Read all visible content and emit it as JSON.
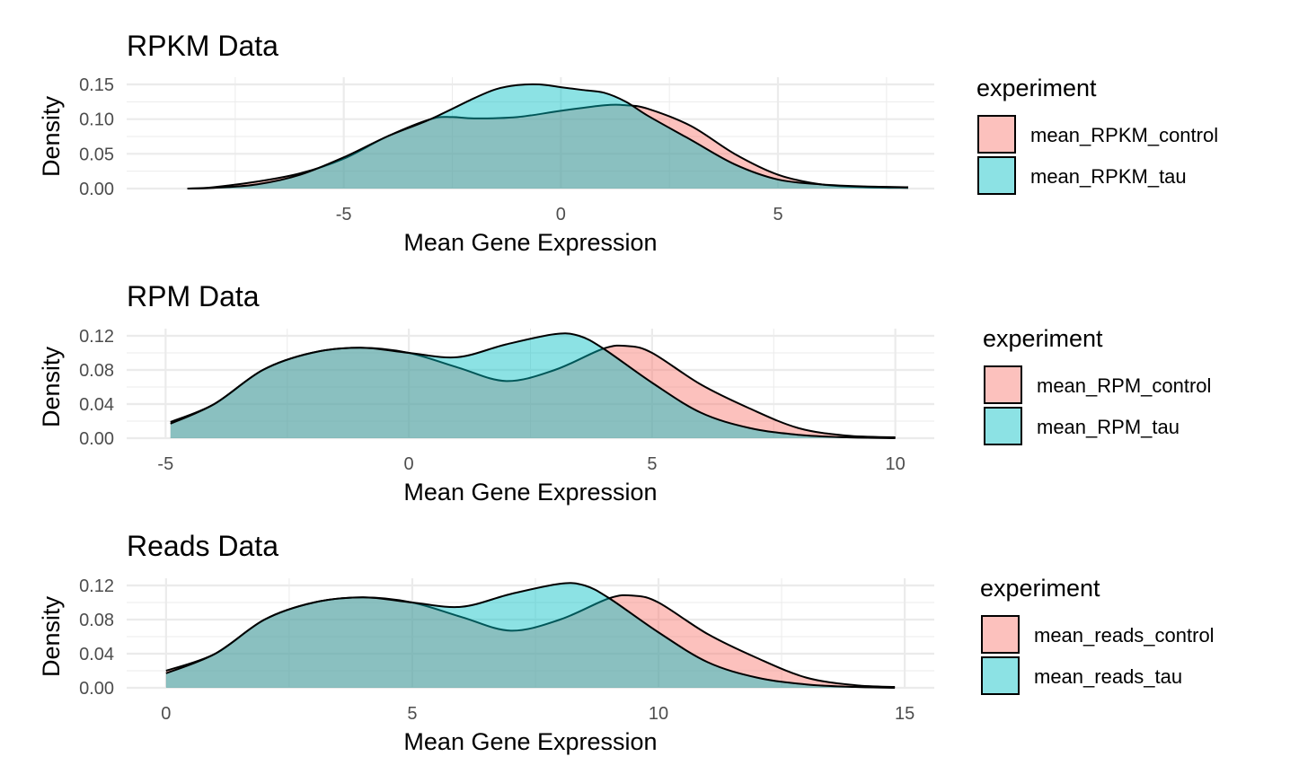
{
  "colors": {
    "control_fill": "#F8766D",
    "tau_fill": "#00BFC4",
    "grid": "#EBEBEB",
    "outline": "#000000",
    "tick_text": "#4D4D4D"
  },
  "chart_data": [
    {
      "type": "area",
      "title": "RPKM Data",
      "xlabel": "Mean Gene Expression",
      "ylabel": "Density",
      "xlim": [
        -10,
        8.6
      ],
      "ylim": [
        0,
        0.15
      ],
      "xticks": [
        -5,
        0,
        5
      ],
      "xtick_labels": [
        "-5",
        "0",
        "5"
      ],
      "yticks": [
        0,
        0.05,
        0.1,
        0.15
      ],
      "ytick_labels": [
        "0.00",
        "0.05",
        "0.10",
        "0.15"
      ],
      "grid": true,
      "legend": {
        "title": "experiment",
        "position": "right"
      },
      "series": [
        {
          "name": "mean_RPKM_control",
          "color_key": "control_fill",
          "x": [
            -8.6,
            -8,
            -7,
            -6,
            -5,
            -4,
            -3,
            -2.5,
            -2,
            -1,
            0,
            1,
            1.5,
            2,
            3,
            4,
            5,
            6,
            7,
            8
          ],
          "y": [
            0.0,
            0.002,
            0.01,
            0.022,
            0.043,
            0.075,
            0.1,
            0.103,
            0.101,
            0.103,
            0.112,
            0.12,
            0.12,
            0.115,
            0.09,
            0.05,
            0.02,
            0.006,
            0.002,
            0.001
          ]
        },
        {
          "name": "mean_RPKM_tau",
          "color_key": "tau_fill",
          "x": [
            -8.6,
            -8,
            -7,
            -6,
            -5,
            -4,
            -3,
            -2,
            -1.5,
            -1,
            -0.5,
            0,
            0.5,
            1,
            1.5,
            2,
            3,
            4,
            5,
            6,
            7,
            8
          ],
          "y": [
            0.0,
            0.001,
            0.006,
            0.02,
            0.045,
            0.075,
            0.1,
            0.13,
            0.143,
            0.149,
            0.15,
            0.146,
            0.142,
            0.138,
            0.125,
            0.105,
            0.07,
            0.035,
            0.013,
            0.006,
            0.003,
            0.002
          ]
        }
      ]
    },
    {
      "type": "area",
      "title": "RPM Data",
      "xlabel": "Mean Gene Expression",
      "ylabel": "Density",
      "xlim": [
        -5.8,
        10.8
      ],
      "ylim": [
        0,
        0.12
      ],
      "xticks": [
        -5,
        0,
        5,
        10
      ],
      "xtick_labels": [
        "-5",
        "0",
        "5",
        "10"
      ],
      "yticks": [
        0,
        0.04,
        0.08,
        0.12
      ],
      "ytick_labels": [
        "0.00",
        "0.04",
        "0.08",
        "0.12"
      ],
      "grid": true,
      "legend": {
        "title": "experiment",
        "position": "right"
      },
      "series": [
        {
          "name": "mean_RPM_control",
          "color_key": "control_fill",
          "x": [
            -4.9,
            -4,
            -3,
            -2,
            -1,
            0,
            1,
            2,
            3,
            4,
            4.5,
            5,
            6,
            7,
            8,
            9,
            10
          ],
          "y": [
            0.019,
            0.04,
            0.08,
            0.1,
            0.106,
            0.1,
            0.083,
            0.067,
            0.08,
            0.105,
            0.108,
            0.1,
            0.063,
            0.035,
            0.012,
            0.003,
            0.001
          ]
        },
        {
          "name": "mean_RPM_tau",
          "color_key": "tau_fill",
          "x": [
            -4.9,
            -4,
            -3,
            -2,
            -1,
            0,
            1,
            2,
            3,
            3.5,
            4,
            5,
            6,
            7,
            8,
            9,
            10
          ],
          "y": [
            0.017,
            0.04,
            0.08,
            0.1,
            0.106,
            0.1,
            0.095,
            0.11,
            0.122,
            0.12,
            0.105,
            0.065,
            0.03,
            0.012,
            0.004,
            0.001,
            0.0
          ]
        }
      ]
    },
    {
      "type": "area",
      "title": "Reads Data",
      "xlabel": "Mean Gene Expression",
      "ylabel": "Density",
      "xlim": [
        -0.8,
        15.6
      ],
      "ylim": [
        0,
        0.12
      ],
      "xticks": [
        0,
        5,
        10,
        15
      ],
      "xtick_labels": [
        "0",
        "5",
        "10",
        "15"
      ],
      "yticks": [
        0,
        0.04,
        0.08,
        0.12
      ],
      "ytick_labels": [
        "0.00",
        "0.04",
        "0.08",
        "0.12"
      ],
      "grid": true,
      "legend": {
        "title": "experiment",
        "position": "right"
      },
      "series": [
        {
          "name": "mean_reads_control",
          "color_key": "control_fill",
          "x": [
            0,
            1,
            2,
            3,
            4,
            5,
            6,
            7,
            8,
            9,
            9.5,
            10,
            11,
            12,
            13,
            14,
            14.8
          ],
          "y": [
            0.02,
            0.04,
            0.08,
            0.1,
            0.106,
            0.1,
            0.083,
            0.067,
            0.08,
            0.105,
            0.108,
            0.1,
            0.063,
            0.035,
            0.012,
            0.003,
            0.001
          ]
        },
        {
          "name": "mean_reads_tau",
          "color_key": "tau_fill",
          "x": [
            0,
            1,
            2,
            3,
            4,
            5,
            6,
            7,
            8,
            8.5,
            9,
            10,
            11,
            12,
            13,
            14,
            14.8
          ],
          "y": [
            0.017,
            0.04,
            0.08,
            0.1,
            0.106,
            0.1,
            0.095,
            0.11,
            0.122,
            0.12,
            0.105,
            0.065,
            0.03,
            0.012,
            0.004,
            0.001,
            0.0
          ]
        }
      ]
    }
  ]
}
